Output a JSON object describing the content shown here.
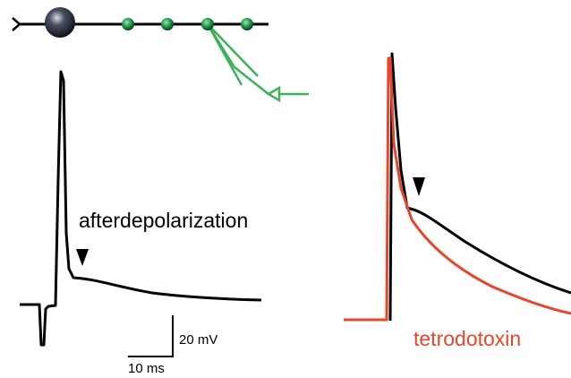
{
  "labels": {
    "adp": "afterdepolarization",
    "voltage_scale": "20 mV",
    "time_scale": "10 ms",
    "drug": "tetrodotoxin"
  }
}
